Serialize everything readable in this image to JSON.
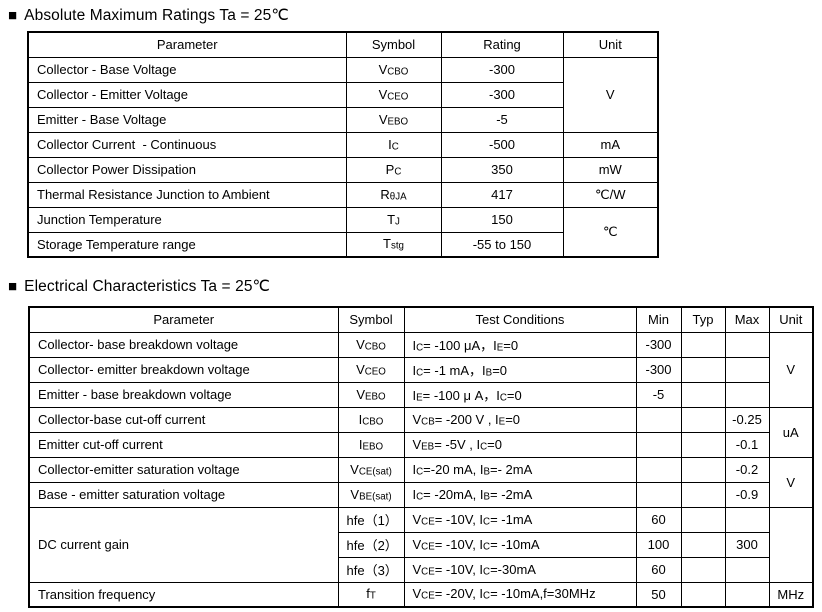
{
  "abs_max": {
    "bullet": "■",
    "title": "Absolute Maximum Ratings Ta = 25℃",
    "headers": [
      "Parameter",
      "Symbol",
      "Rating",
      "Unit"
    ],
    "rows": [
      {
        "p": "Collector - Base Voltage",
        "s": "V~CBO~",
        "r": "-300"
      },
      {
        "p": "Collector - Emitter Voltage",
        "s": "V~CEO~",
        "r": "-300"
      },
      {
        "p": "Emitter - Base Voltage",
        "s": "V~EBO~",
        "r": "-5"
      },
      {
        "p": "Collector Current  - Continuous",
        "s": "I~C~",
        "r": "-500"
      },
      {
        "p": "Collector Power Dissipation",
        "s": "P~C~",
        "r": "350"
      },
      {
        "p": "Thermal Resistance Junction to Ambient",
        "s": "R~θJA~",
        "r": "417"
      },
      {
        "p": "Junction Temperature",
        "s": "T~J~",
        "r": "150"
      },
      {
        "p": "Storage Temperature range",
        "s": "T~stg~",
        "r": "-55 to 150"
      }
    ],
    "units": {
      "v": "V",
      "ma": "mA",
      "mw": "mW",
      "cw": "℃/W",
      "c": "℃"
    }
  },
  "elec": {
    "bullet": "■",
    "title": "Electrical Characteristics Ta = 25℃",
    "headers": [
      "Parameter",
      "Symbol",
      "Test Conditions",
      "Min",
      "Typ",
      "Max",
      "Unit"
    ],
    "rows": [
      {
        "p": "Collector- base breakdown voltage",
        "s": "V~CBO~",
        "tc": "I~C~= -100 μA，I~E~=0",
        "min": "-300",
        "typ": "",
        "max": ""
      },
      {
        "p": "Collector- emitter breakdown voltage",
        "s": "V~CEO~",
        "tc": "I~C~= -1 mA，I~B~=0",
        "min": "-300",
        "typ": "",
        "max": ""
      },
      {
        "p": "Emitter - base breakdown voltage",
        "s": "V~EBO~",
        "tc": "I~E~= -100 μ A，I~C~=0",
        "min": "-5",
        "typ": "",
        "max": ""
      },
      {
        "p": "Collector-base cut-off current",
        "s": "I~CBO~",
        "tc": "V~CB~= -200 V , I~E~=0",
        "min": "",
        "typ": "",
        "max": "-0.25"
      },
      {
        "p": "Emitter cut-off current",
        "s": "I~EBO~",
        "tc": "V~EB~= -5V , I~C~=0",
        "min": "",
        "typ": "",
        "max": "-0.1"
      },
      {
        "p": "Collector-emitter saturation voltage",
        "s": "V~CE(sat)~",
        "tc": "I~C~=-20 mA, I~B~=- 2mA",
        "min": "",
        "typ": "",
        "max": "-0.2"
      },
      {
        "p": "Base - emitter saturation voltage",
        "s": "V~BE(sat)~",
        "tc": "I~C~= -20mA, I~B~= -2mA",
        "min": "",
        "typ": "",
        "max": "-0.9"
      },
      {
        "p": "DC current gain",
        "s": "hfe（1）",
        "tc": "V~CE~= -10V, I~C~= -1mA",
        "min": "60",
        "typ": "",
        "max": ""
      },
      {
        "s": "hfe（2）",
        "tc": "V~CE~= -10V, I~C~= -10mA",
        "min": "100",
        "typ": "",
        "max": "300"
      },
      {
        "s": "hfe（3）",
        "tc": "V~CE~= -10V, I~C~=-30mA",
        "min": "60",
        "typ": "",
        "max": ""
      },
      {
        "p": "Transition frequency",
        "s": "f~T~",
        "tc": "V~CE~= -20V, I~C~= -10mA,f=30MHz",
        "min": "50",
        "typ": "",
        "max": ""
      }
    ],
    "units": {
      "v_breakdown": "V",
      "ua": "uA",
      "v_sat": "V",
      "hfe": "",
      "mhz": "MHz"
    }
  }
}
